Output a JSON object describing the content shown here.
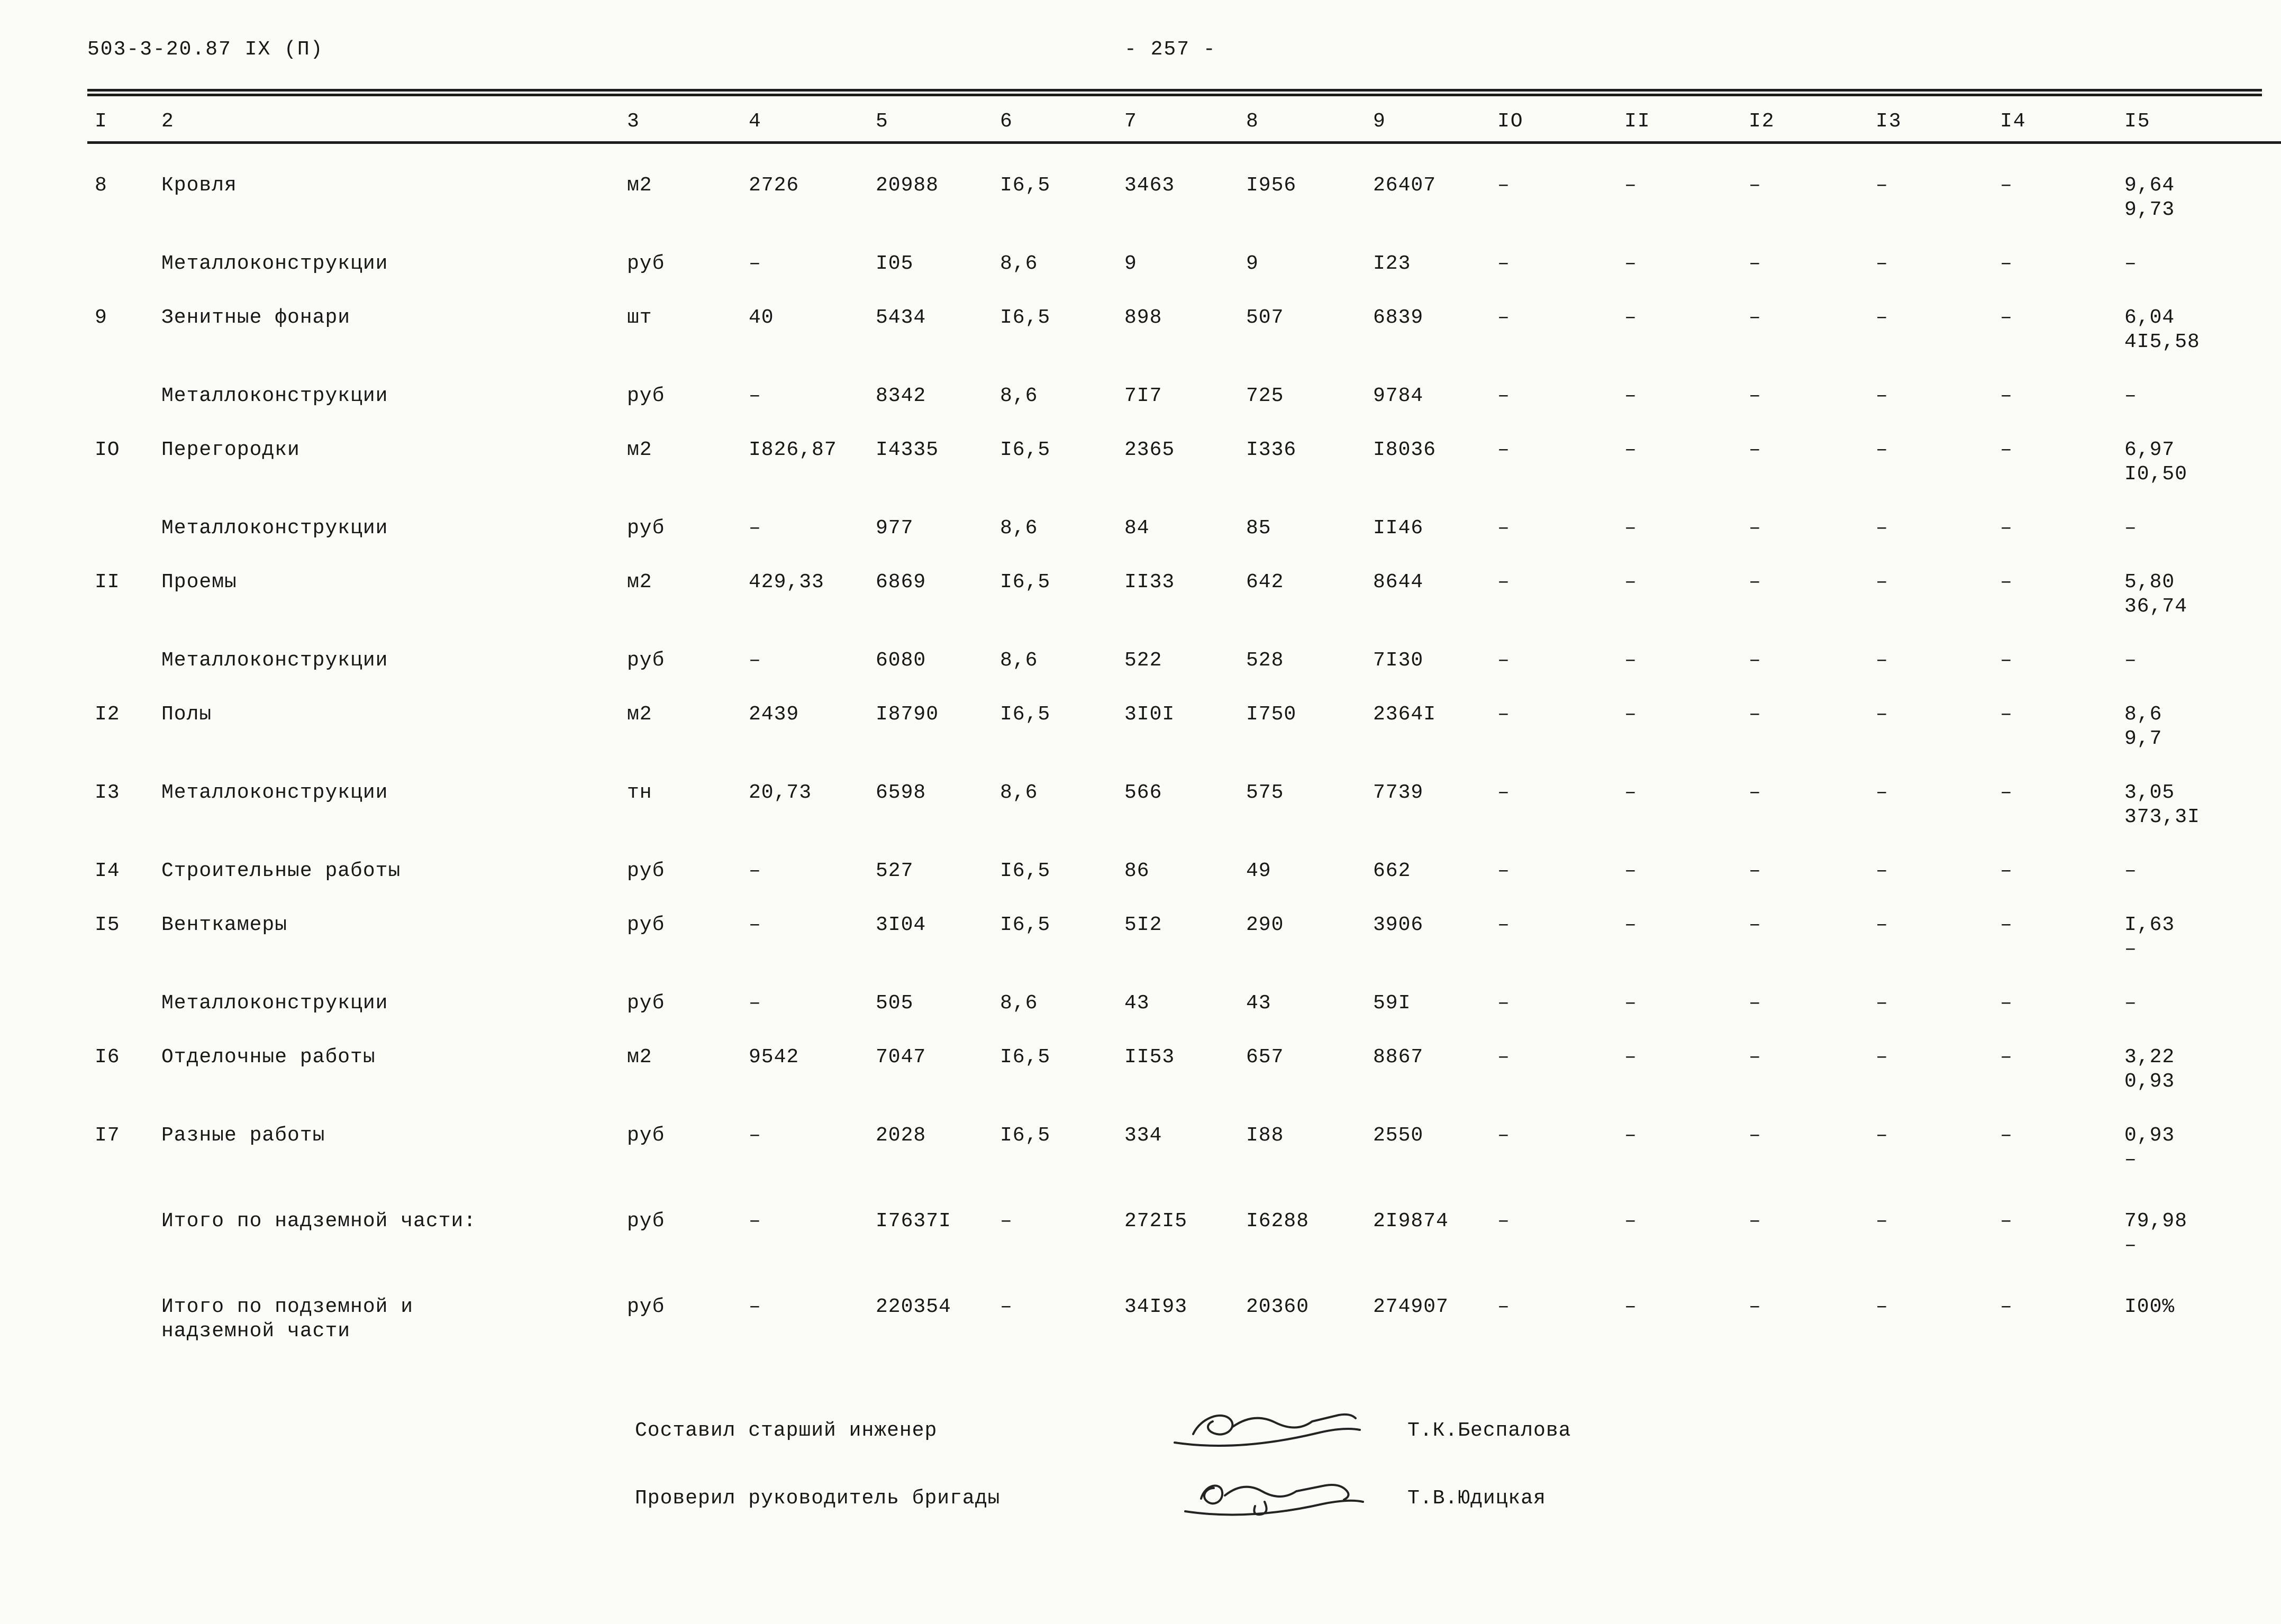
{
  "page": {
    "doc_code": "503-3-20.87  IX (П)",
    "page_number": "- 257 -"
  },
  "table": {
    "columns": [
      "I",
      "2",
      "3",
      "4",
      "5",
      "6",
      "7",
      "8",
      "9",
      "IO",
      "II",
      "I2",
      "I3",
      "I4",
      "I5"
    ],
    "rows": [
      [
        "8",
        "Кровля",
        "м2",
        "2726",
        "20988",
        "I6,5",
        "3463",
        "I956",
        "26407",
        "–",
        "–",
        "–",
        "–",
        "–",
        "9,64\n9,73"
      ],
      [
        "",
        "Металлоконструкции",
        "руб",
        "–",
        "I05",
        "8,6",
        "9",
        "9",
        "I23",
        "–",
        "–",
        "–",
        "–",
        "–",
        "–"
      ],
      [
        "9",
        "Зенитные фонари",
        "шт",
        "40",
        "5434",
        "I6,5",
        "898",
        "507",
        "6839",
        "–",
        "–",
        "–",
        "–",
        "–",
        "6,04\n4I5,58"
      ],
      [
        "",
        "Металлоконструкции",
        "руб",
        "–",
        "8342",
        "8,6",
        "7I7",
        "725",
        "9784",
        "–",
        "–",
        "–",
        "–",
        "–",
        "–"
      ],
      [
        "IO",
        "Перегородки",
        "м2",
        "I826,87",
        "I4335",
        "I6,5",
        "2365",
        "I336",
        "I8036",
        "–",
        "–",
        "–",
        "–",
        "–",
        "6,97\nI0,50"
      ],
      [
        "",
        "Металлоконструкции",
        "руб",
        "–",
        "977",
        "8,6",
        "84",
        "85",
        "II46",
        "–",
        "–",
        "–",
        "–",
        "–",
        "–"
      ],
      [
        "II",
        "Проемы",
        "м2",
        "429,33",
        "6869",
        "I6,5",
        "II33",
        "642",
        "8644",
        "–",
        "–",
        "–",
        "–",
        "–",
        "5,80\n36,74"
      ],
      [
        "",
        "Металлоконструкции",
        "руб",
        "–",
        "6080",
        "8,6",
        "522",
        "528",
        "7I30",
        "–",
        "–",
        "–",
        "–",
        "–",
        "–"
      ],
      [
        "I2",
        "Полы",
        "м2",
        "2439",
        "I8790",
        "I6,5",
        "3I0I",
        "I750",
        "2364I",
        "–",
        "–",
        "–",
        "–",
        "–",
        "8,6\n9,7"
      ],
      [
        "I3",
        "Металлоконструкции",
        "тн",
        "20,73",
        "6598",
        "8,6",
        "566",
        "575",
        "7739",
        "–",
        "–",
        "–",
        "–",
        "–",
        "3,05\n373,3I"
      ],
      [
        "I4",
        "Строительные работы",
        "руб",
        "–",
        "527",
        "I6,5",
        "86",
        "49",
        "662",
        "–",
        "–",
        "–",
        "–",
        "–",
        "–"
      ],
      [
        "I5",
        "Венткамеры",
        "руб",
        "–",
        "3I04",
        "I6,5",
        "5I2",
        "290",
        "3906",
        "–",
        "–",
        "–",
        "–",
        "–",
        "I,63\n–"
      ],
      [
        "",
        "Металлоконструкции",
        "руб",
        "–",
        "505",
        "8,6",
        "43",
        "43",
        "59I",
        "–",
        "–",
        "–",
        "–",
        "–",
        "–"
      ],
      [
        "I6",
        "Отделочные работы",
        "м2",
        "9542",
        "7047",
        "I6,5",
        "II53",
        "657",
        "8867",
        "–",
        "–",
        "–",
        "–",
        "–",
        "3,22\n0,93"
      ],
      [
        "I7",
        "Разные работы",
        "руб",
        "–",
        "2028",
        "I6,5",
        "334",
        "I88",
        "2550",
        "–",
        "–",
        "–",
        "–",
        "–",
        "0,93\n–"
      ],
      [
        "",
        "Итого по надземной части:",
        "руб",
        "–",
        "I7637I",
        "–",
        "272I5",
        "I6288",
        "2I9874",
        "–",
        "–",
        "–",
        "–",
        "–",
        "79,98\n–"
      ],
      [
        "",
        "Итого по подземной и\nнадземной части",
        "руб",
        "–",
        "220354",
        "–",
        "34I93",
        "20360",
        "274907",
        "–",
        "–",
        "–",
        "–",
        "–",
        "I00%"
      ]
    ]
  },
  "footer": {
    "rows": [
      {
        "label": "Составил старший инженер",
        "signature_icon": "handwritten-signature",
        "name": "Т.К.Беспалова"
      },
      {
        "label": "Проверил руководитель бригады",
        "signature_icon": "handwritten-signature",
        "name": "Т.В.Юдицкая"
      }
    ]
  }
}
